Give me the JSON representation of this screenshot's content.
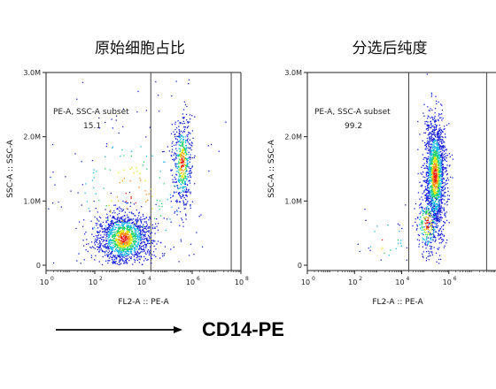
{
  "titles": {
    "left": "原始细胞占比",
    "right": "分选后纯度"
  },
  "bottom_label": "CD14-PE",
  "colors": {
    "density": [
      "#1b24d9",
      "#1fb8e6",
      "#23d36a",
      "#e4e317",
      "#ff8c14",
      "#e81919"
    ],
    "axis": "#222222",
    "gate_line": "#444444"
  },
  "chart_data": [
    {
      "type": "scatter",
      "subtype": "flow-cytometry density dot plot",
      "xlabel": "FL2-A :: PE-A",
      "ylabel": "SSC-A :: SSC-A",
      "x_scale": "log",
      "xlim": [
        1,
        100000000
      ],
      "x_ticks": [
        {
          "exp": "0",
          "v": 1
        },
        {
          "exp": "2",
          "v": 100
        },
        {
          "exp": "4",
          "v": 10000
        },
        {
          "exp": "6",
          "v": 1000000
        },
        {
          "exp": "8",
          "v": 100000000
        }
      ],
      "ylim": [
        0,
        3000000
      ],
      "y_ticks": [
        {
          "label": "0",
          "v": 0
        },
        {
          "label": "1.0M",
          "v": 1000000
        },
        {
          "label": "2.0M",
          "v": 2000000
        },
        {
          "label": "3.0M",
          "v": 3000000
        }
      ],
      "gate": {
        "name": "PE-A, SSC-A subset",
        "percent": "15.1",
        "x_min": 20000,
        "x_max": 40000000
      },
      "populations": [
        {
          "x_center": 1500,
          "x_spread_decades": 0.55,
          "y_center": 420000,
          "y_spread": 210000,
          "points": 1500
        },
        {
          "x_center": 380000,
          "x_spread_decades": 0.2,
          "y_center": 1600000,
          "y_spread": 380000,
          "points": 520
        },
        {
          "x_center": 3000,
          "x_spread_decades": 1.6,
          "y_center": 1100000,
          "y_spread": 700000,
          "points": 200
        }
      ]
    },
    {
      "type": "scatter",
      "subtype": "flow-cytometry density dot plot",
      "xlabel": "FL2-A :: PE-A",
      "ylabel": "SSC-A :: SSC-A",
      "x_scale": "log",
      "xlim": [
        1,
        100000000
      ],
      "x_ticks": [
        {
          "exp": "0",
          "v": 1
        },
        {
          "exp": "2",
          "v": 100
        },
        {
          "exp": "4",
          "v": 10000
        },
        {
          "exp": "6",
          "v": 1000000
        }
      ],
      "ylim": [
        0,
        3000000
      ],
      "y_ticks": [
        {
          "label": "0",
          "v": 0
        },
        {
          "label": "1.0M",
          "v": 1000000
        },
        {
          "label": "2.0M",
          "v": 2000000
        },
        {
          "label": "3.0M",
          "v": 3000000
        }
      ],
      "gate": {
        "name": "PE-A, SSC-A subset",
        "percent": "99.2",
        "x_min": 20000,
        "x_max": 40000000
      },
      "populations": [
        {
          "x_center": 250000,
          "x_spread_decades": 0.22,
          "y_center": 1400000,
          "y_spread": 450000,
          "points": 1700
        },
        {
          "x_center": 120000,
          "x_spread_decades": 0.3,
          "y_center": 650000,
          "y_spread": 250000,
          "points": 250
        },
        {
          "x_center": 2000,
          "x_spread_decades": 0.6,
          "y_center": 400000,
          "y_spread": 250000,
          "points": 30
        }
      ]
    }
  ]
}
